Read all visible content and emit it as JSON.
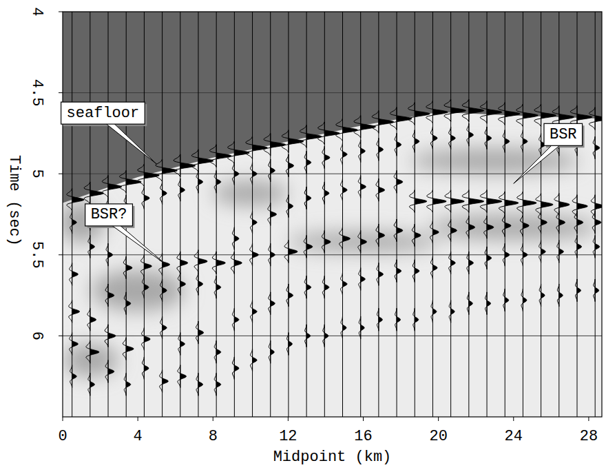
{
  "chart_data": {
    "type": "wiggle",
    "xlabel": "Midpoint (km)",
    "ylabel": "Time (sec)",
    "xlim": [
      0,
      28.7
    ],
    "ylim": [
      6.5,
      4
    ],
    "xticks": [
      0,
      4,
      8,
      12,
      16,
      20,
      24,
      28
    ],
    "yticks": [
      4,
      4.5,
      5,
      5.5,
      6
    ],
    "grid": true,
    "color": "#000000",
    "seafloor": {
      "x": [
        0,
        4,
        8,
        12,
        16,
        20,
        24,
        28.7
      ],
      "time": [
        5.18,
        5.02,
        4.9,
        4.8,
        4.7,
        4.62,
        4.64,
        4.66
      ]
    },
    "shading": [
      {
        "x": 4,
        "time": 5.72,
        "width": 5,
        "height": 0.25
      },
      {
        "x": 16,
        "time": 5.42,
        "width": 8,
        "height": 0.12
      },
      {
        "x": 24,
        "time": 5.33,
        "width": 9,
        "height": 0.15
      },
      {
        "x": 23,
        "time": 4.92,
        "width": 9,
        "height": 0.15
      },
      {
        "x": 1,
        "time": 5.3,
        "width": 2.5,
        "height": 0.25
      },
      {
        "x": 10,
        "time": 5.12,
        "width": 4,
        "height": 0.15
      },
      {
        "x": 1.5,
        "time": 6.15,
        "width": 3,
        "height": 0.2
      }
    ],
    "traces": [
      {
        "x": 0.5,
        "times": [
          5.16,
          5.3,
          5.62,
          5.85,
          6.05,
          6.25
        ],
        "amps": [
          0.8,
          0.3,
          0.4,
          0.5,
          0.4,
          0.3
        ]
      },
      {
        "x": 1.46,
        "times": [
          5.12,
          5.28,
          5.45,
          5.9,
          6.1,
          6.3
        ],
        "amps": [
          0.9,
          0.3,
          0.3,
          0.4,
          0.6,
          0.3
        ]
      },
      {
        "x": 2.42,
        "times": [
          5.08,
          5.22,
          5.5,
          5.75,
          6.0,
          6.22
        ],
        "amps": [
          0.9,
          0.3,
          0.3,
          0.4,
          0.5,
          0.4
        ]
      },
      {
        "x": 3.38,
        "times": [
          5.05,
          5.2,
          5.58,
          5.8,
          6.08,
          6.3
        ],
        "amps": [
          1.0,
          0.3,
          0.4,
          0.3,
          0.5,
          0.3
        ]
      },
      {
        "x": 4.34,
        "times": [
          5.01,
          5.15,
          5.57,
          5.7,
          6.02,
          6.2
        ],
        "amps": [
          1.0,
          0.35,
          0.5,
          0.3,
          0.4,
          0.3
        ]
      },
      {
        "x": 5.3,
        "times": [
          4.98,
          5.12,
          5.56,
          5.72,
          5.95,
          6.28
        ],
        "amps": [
          1.0,
          0.3,
          0.5,
          0.3,
          0.3,
          0.4
        ]
      },
      {
        "x": 6.26,
        "times": [
          4.95,
          5.1,
          5.55,
          5.68,
          6.05,
          6.25
        ],
        "amps": [
          1.0,
          0.3,
          0.5,
          0.35,
          0.3,
          0.4
        ]
      },
      {
        "x": 7.22,
        "times": [
          4.92,
          5.05,
          5.54,
          5.68,
          5.98,
          6.3
        ],
        "amps": [
          1.0,
          0.3,
          0.6,
          0.3,
          0.35,
          0.3
        ]
      },
      {
        "x": 8.18,
        "times": [
          4.89,
          5.05,
          5.55,
          5.7,
          6.1,
          6.3
        ],
        "amps": [
          1.0,
          0.3,
          0.6,
          0.3,
          0.3,
          0.3
        ]
      },
      {
        "x": 9.14,
        "times": [
          4.87,
          5.0,
          5.4,
          5.55,
          5.9,
          6.2
        ],
        "amps": [
          1.0,
          0.3,
          0.3,
          0.5,
          0.3,
          0.3
        ]
      },
      {
        "x": 10.1,
        "times": [
          4.84,
          5.0,
          5.3,
          5.5,
          5.85,
          6.15
        ],
        "amps": [
          1.0,
          0.3,
          0.3,
          0.4,
          0.3,
          0.3
        ]
      },
      {
        "x": 11.06,
        "times": [
          4.82,
          4.98,
          5.25,
          5.5,
          5.8,
          6.1
        ],
        "amps": [
          1.0,
          0.3,
          0.4,
          0.3,
          0.3,
          0.25
        ]
      },
      {
        "x": 12.02,
        "times": [
          4.8,
          4.95,
          5.2,
          5.48,
          5.75,
          6.05
        ],
        "amps": [
          1.0,
          0.35,
          0.3,
          0.6,
          0.3,
          0.25
        ]
      },
      {
        "x": 12.98,
        "times": [
          4.77,
          4.93,
          5.15,
          5.45,
          5.7,
          6.0
        ],
        "amps": [
          1.0,
          0.3,
          0.3,
          0.4,
          0.3,
          0.25
        ]
      },
      {
        "x": 13.94,
        "times": [
          4.75,
          4.9,
          5.12,
          5.42,
          5.7,
          6.0
        ],
        "amps": [
          1.0,
          0.35,
          0.3,
          0.4,
          0.3,
          0.25
        ]
      },
      {
        "x": 14.9,
        "times": [
          4.73,
          4.88,
          5.1,
          5.4,
          5.68,
          5.95
        ],
        "amps": [
          1.0,
          0.3,
          0.3,
          0.5,
          0.3,
          0.25
        ]
      },
      {
        "x": 15.86,
        "times": [
          4.71,
          4.86,
          5.08,
          5.42,
          5.65,
          5.95
        ],
        "amps": [
          1.0,
          0.3,
          0.35,
          0.4,
          0.3,
          0.25
        ]
      },
      {
        "x": 16.82,
        "times": [
          4.68,
          4.85,
          5.1,
          5.38,
          5.62,
          5.9
        ],
        "amps": [
          1.0,
          0.3,
          0.4,
          0.4,
          0.3,
          0.25
        ]
      },
      {
        "x": 17.78,
        "times": [
          4.66,
          4.82,
          5.05,
          5.35,
          5.6,
          5.9
        ],
        "amps": [
          1.0,
          0.3,
          0.4,
          0.4,
          0.3,
          0.25
        ]
      },
      {
        "x": 18.74,
        "times": [
          4.63,
          4.8,
          5.17,
          5.38,
          5.6,
          5.9
        ],
        "amps": [
          1.0,
          0.3,
          0.8,
          0.4,
          0.3,
          0.25
        ]
      },
      {
        "x": 19.7,
        "times": [
          4.62,
          4.78,
          5.17,
          5.36,
          5.58,
          5.85
        ],
        "amps": [
          1.0,
          0.3,
          0.9,
          0.4,
          0.3,
          0.25
        ]
      },
      {
        "x": 20.66,
        "times": [
          4.61,
          4.78,
          5.17,
          5.35,
          5.55,
          5.85
        ],
        "amps": [
          1.0,
          0.3,
          0.9,
          0.4,
          0.3,
          0.25
        ]
      },
      {
        "x": 21.62,
        "times": [
          4.61,
          4.76,
          5.17,
          5.33,
          5.55,
          5.8
        ],
        "amps": [
          1.0,
          0.3,
          1.0,
          0.4,
          0.3,
          0.25
        ]
      },
      {
        "x": 22.58,
        "times": [
          4.62,
          4.78,
          5.17,
          5.33,
          5.52,
          5.8
        ],
        "amps": [
          1.0,
          0.3,
          1.0,
          0.45,
          0.3,
          0.25
        ]
      },
      {
        "x": 23.54,
        "times": [
          4.63,
          4.8,
          5.18,
          5.32,
          5.5,
          5.78
        ],
        "amps": [
          1.0,
          0.3,
          0.9,
          0.4,
          0.3,
          0.25
        ]
      },
      {
        "x": 24.5,
        "times": [
          4.64,
          4.8,
          5.18,
          5.32,
          5.5,
          5.78
        ],
        "amps": [
          1.0,
          0.3,
          0.9,
          0.4,
          0.3,
          0.25
        ]
      },
      {
        "x": 25.46,
        "times": [
          4.64,
          4.82,
          5.19,
          5.3,
          5.48,
          5.75
        ],
        "amps": [
          1.0,
          0.3,
          0.8,
          0.4,
          0.3,
          0.25
        ]
      },
      {
        "x": 26.42,
        "times": [
          4.65,
          4.82,
          5.19,
          5.3,
          5.48,
          5.75
        ],
        "amps": [
          1.0,
          0.3,
          0.7,
          0.4,
          0.3,
          0.25
        ]
      },
      {
        "x": 27.38,
        "times": [
          4.65,
          4.82,
          5.2,
          5.3,
          5.45,
          5.72
        ],
        "amps": [
          1.0,
          0.3,
          0.7,
          0.4,
          0.3,
          0.25
        ]
      },
      {
        "x": 28.34,
        "times": [
          4.66,
          4.84,
          5.2,
          5.3,
          5.45,
          5.72
        ],
        "amps": [
          0.9,
          0.3,
          0.6,
          0.4,
          0.3,
          0.25
        ]
      }
    ],
    "annotations": [
      {
        "text": "seafloor",
        "x": 5.0,
        "time": 4.94
      },
      {
        "text": "BSR",
        "x": 24.0,
        "time": 5.06
      },
      {
        "text": "BSR?",
        "x": 5.5,
        "time": 5.56
      }
    ]
  }
}
